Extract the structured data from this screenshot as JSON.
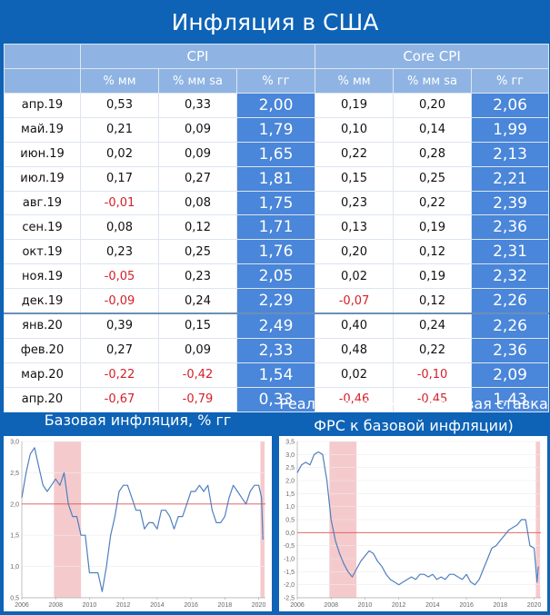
{
  "page_title": "Инфляция в США",
  "table": {
    "group_headers": [
      "CPI",
      "Core CPI"
    ],
    "col_headers": [
      "% мм",
      "% мм sa",
      "% гг",
      "% мм",
      "% мм sa",
      "% гг"
    ],
    "rows": [
      {
        "month": "апр.19",
        "cpi_mm": "0,53",
        "cpi_mmsa": "0,33",
        "cpi_yy": "2,00",
        "core_mm": "0,19",
        "core_mmsa": "0,20",
        "core_yy": "2,06"
      },
      {
        "month": "май.19",
        "cpi_mm": "0,21",
        "cpi_mmsa": "0,09",
        "cpi_yy": "1,79",
        "core_mm": "0,10",
        "core_mmsa": "0,14",
        "core_yy": "1,99"
      },
      {
        "month": "июн.19",
        "cpi_mm": "0,02",
        "cpi_mmsa": "0,09",
        "cpi_yy": "1,65",
        "core_mm": "0,22",
        "core_mmsa": "0,28",
        "core_yy": "2,13"
      },
      {
        "month": "июл.19",
        "cpi_mm": "0,17",
        "cpi_mmsa": "0,27",
        "cpi_yy": "1,81",
        "core_mm": "0,15",
        "core_mmsa": "0,25",
        "core_yy": "2,21"
      },
      {
        "month": "авг.19",
        "cpi_mm": "-0,01",
        "cpi_mmsa": "0,08",
        "cpi_yy": "1,75",
        "core_mm": "0,23",
        "core_mmsa": "0,22",
        "core_yy": "2,39"
      },
      {
        "month": "сен.19",
        "cpi_mm": "0,08",
        "cpi_mmsa": "0,12",
        "cpi_yy": "1,71",
        "core_mm": "0,13",
        "core_mmsa": "0,19",
        "core_yy": "2,36"
      },
      {
        "month": "окт.19",
        "cpi_mm": "0,23",
        "cpi_mmsa": "0,25",
        "cpi_yy": "1,76",
        "core_mm": "0,20",
        "core_mmsa": "0,12",
        "core_yy": "2,31"
      },
      {
        "month": "ноя.19",
        "cpi_mm": "-0,05",
        "cpi_mmsa": "0,23",
        "cpi_yy": "2,05",
        "core_mm": "0,02",
        "core_mmsa": "0,19",
        "core_yy": "2,32"
      },
      {
        "month": "дек.19",
        "cpi_mm": "-0,09",
        "cpi_mmsa": "0,24",
        "cpi_yy": "2,29",
        "core_mm": "-0,07",
        "core_mmsa": "0,12",
        "core_yy": "2,26"
      },
      {
        "month": "янв.20",
        "cpi_mm": "0,39",
        "cpi_mmsa": "0,15",
        "cpi_yy": "2,49",
        "core_mm": "0,40",
        "core_mmsa": "0,24",
        "core_yy": "2,26"
      },
      {
        "month": "фев.20",
        "cpi_mm": "0,27",
        "cpi_mmsa": "0,09",
        "cpi_yy": "2,33",
        "core_mm": "0,48",
        "core_mmsa": "0,22",
        "core_yy": "2,36"
      },
      {
        "month": "мар.20",
        "cpi_mm": "-0,22",
        "cpi_mmsa": "-0,42",
        "cpi_yy": "1,54",
        "core_mm": "0,02",
        "core_mmsa": "-0,10",
        "core_yy": "2,09"
      },
      {
        "month": "апр.20",
        "cpi_mm": "-0,67",
        "cpi_mmsa": "-0,79",
        "cpi_yy": "0,33",
        "core_mm": "-0,46",
        "core_mmsa": "-0,45",
        "core_yy": "1,43"
      }
    ]
  },
  "captions": {
    "left": "Базовая инфляция, % гг",
    "right_line1": "Реальная ставка (ключевая ставка",
    "right_line2": "ФРС к базовой инфляции)"
  },
  "colors": {
    "background": "#0e63b6",
    "header": "#8fb4e3",
    "yy_fill": "#4a86d9",
    "negative": "#d3212b",
    "line": "#4f7fbf",
    "recession": "#f2b8bc",
    "reference": "#e0524f"
  },
  "chart_data": [
    {
      "type": "line",
      "title": "Базовая инфляция, % гг",
      "xlim": [
        2006,
        2020.4
      ],
      "ylim": [
        0.5,
        3.0
      ],
      "xticks": [
        "2006",
        "2008",
        "2010",
        "2012",
        "2014",
        "2016",
        "2018",
        "2020"
      ],
      "yticks": [
        "0,5",
        "1,0",
        "1,5",
        "2,0",
        "2,5",
        "3,0"
      ],
      "recession_bands": [
        [
          2007.9,
          2009.5
        ],
        [
          2020.1,
          2020.35
        ]
      ],
      "reference_line": 2.0,
      "x": [
        2006.0,
        2006.25,
        2006.5,
        2006.75,
        2007.0,
        2007.25,
        2007.5,
        2007.75,
        2008.0,
        2008.25,
        2008.5,
        2008.75,
        2009.0,
        2009.25,
        2009.5,
        2009.75,
        2010.0,
        2010.25,
        2010.5,
        2010.75,
        2011.0,
        2011.25,
        2011.5,
        2011.75,
        2012.0,
        2012.25,
        2012.5,
        2012.75,
        2013.0,
        2013.25,
        2013.5,
        2013.75,
        2014.0,
        2014.25,
        2014.5,
        2014.75,
        2015.0,
        2015.25,
        2015.5,
        2015.75,
        2016.0,
        2016.25,
        2016.5,
        2016.75,
        2017.0,
        2017.25,
        2017.5,
        2017.75,
        2018.0,
        2018.25,
        2018.5,
        2018.75,
        2019.0,
        2019.25,
        2019.5,
        2019.75,
        2020.0,
        2020.17,
        2020.25
      ],
      "values": [
        2.1,
        2.5,
        2.8,
        2.9,
        2.6,
        2.3,
        2.2,
        2.3,
        2.4,
        2.3,
        2.5,
        2.0,
        1.8,
        1.8,
        1.5,
        1.5,
        0.9,
        0.9,
        0.9,
        0.6,
        1.0,
        1.5,
        1.8,
        2.2,
        2.3,
        2.3,
        2.1,
        1.9,
        1.9,
        1.6,
        1.7,
        1.7,
        1.6,
        1.9,
        1.9,
        1.8,
        1.6,
        1.8,
        1.8,
        2.0,
        2.2,
        2.2,
        2.3,
        2.2,
        2.3,
        1.9,
        1.7,
        1.7,
        1.8,
        2.1,
        2.3,
        2.2,
        2.1,
        2.0,
        2.2,
        2.3,
        2.3,
        2.1,
        1.43
      ]
    },
    {
      "type": "line",
      "title": "Реальная ставка (ключевая ставка ФРС к базовой инфляции)",
      "xlim": [
        2006,
        2020.4
      ],
      "ylim": [
        -2.5,
        3.5
      ],
      "xticks": [
        "2006",
        "2008",
        "2010",
        "2012",
        "2014",
        "2016",
        "2018",
        "2020"
      ],
      "yticks": [
        "3,5",
        "3,0",
        "2,5",
        "2,0",
        "1,5",
        "1,0",
        "0,5",
        "0,0",
        "-0,5",
        "-1,0",
        "-1,5",
        "-2,0",
        "-2,5"
      ],
      "recession_bands": [
        [
          2007.9,
          2009.5
        ],
        [
          2020.1,
          2020.35
        ]
      ],
      "reference_line": 0.0,
      "x": [
        2006.0,
        2006.25,
        2006.5,
        2006.75,
        2007.0,
        2007.25,
        2007.5,
        2007.75,
        2008.0,
        2008.25,
        2008.5,
        2008.75,
        2009.0,
        2009.25,
        2009.5,
        2009.75,
        2010.0,
        2010.25,
        2010.5,
        2010.75,
        2011.0,
        2011.25,
        2011.5,
        2011.75,
        2012.0,
        2012.25,
        2012.5,
        2012.75,
        2013.0,
        2013.25,
        2013.5,
        2013.75,
        2014.0,
        2014.25,
        2014.5,
        2014.75,
        2015.0,
        2015.25,
        2015.5,
        2015.75,
        2016.0,
        2016.25,
        2016.5,
        2016.75,
        2017.0,
        2017.25,
        2017.5,
        2017.75,
        2018.0,
        2018.25,
        2018.5,
        2018.75,
        2019.0,
        2019.25,
        2019.5,
        2019.75,
        2020.0,
        2020.17,
        2020.25
      ],
      "values": [
        2.3,
        2.6,
        2.7,
        2.6,
        3.0,
        3.1,
        3.0,
        2.0,
        0.5,
        -0.3,
        -0.8,
        -1.2,
        -1.5,
        -1.7,
        -1.4,
        -1.1,
        -0.9,
        -0.7,
        -0.8,
        -1.1,
        -1.3,
        -1.6,
        -1.8,
        -1.9,
        -2.0,
        -1.9,
        -1.8,
        -1.7,
        -1.8,
        -1.6,
        -1.6,
        -1.7,
        -1.6,
        -1.8,
        -1.7,
        -1.8,
        -1.6,
        -1.6,
        -1.7,
        -1.8,
        -1.6,
        -1.9,
        -2.0,
        -1.8,
        -1.4,
        -1.0,
        -0.6,
        -0.5,
        -0.3,
        -0.1,
        0.1,
        0.2,
        0.3,
        0.5,
        0.5,
        -0.5,
        -0.6,
        -1.9,
        -1.3
      ]
    }
  ]
}
